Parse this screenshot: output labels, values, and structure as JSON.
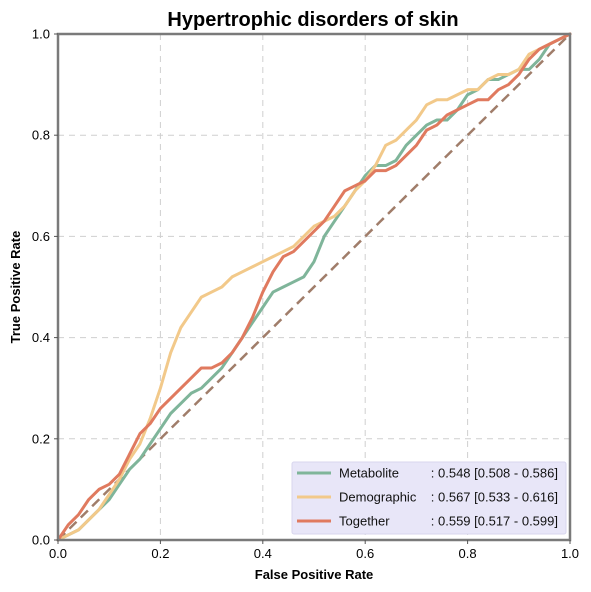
{
  "chart_data": {
    "type": "line",
    "title": "Hypertrophic disorders of skin",
    "xlabel": "False Positive Rate",
    "ylabel": "True Positive Rate",
    "xlim": [
      0,
      1
    ],
    "ylim": [
      0,
      1
    ],
    "xticks": [
      "0.0",
      "0.2",
      "0.4",
      "0.6",
      "0.8",
      "1.0"
    ],
    "yticks": [
      "0.0",
      "0.2",
      "0.4",
      "0.6",
      "0.8",
      "1.0"
    ],
    "grid": true,
    "legend_position": "bottom-right",
    "diagonal": {
      "x": [
        0,
        1
      ],
      "y": [
        0,
        1
      ],
      "color": "#a07d6a",
      "style": "dashed"
    },
    "series": [
      {
        "name": "Metabolite",
        "label_name": "Metabolite",
        "label_value": ": 0.548 [0.508 - 0.586]",
        "color": "#7fb59a",
        "x": [
          0,
          0.02,
          0.04,
          0.06,
          0.08,
          0.1,
          0.12,
          0.14,
          0.16,
          0.18,
          0.2,
          0.22,
          0.24,
          0.26,
          0.28,
          0.3,
          0.32,
          0.34,
          0.36,
          0.38,
          0.4,
          0.42,
          0.44,
          0.46,
          0.48,
          0.5,
          0.52,
          0.54,
          0.56,
          0.58,
          0.6,
          0.62,
          0.64,
          0.66,
          0.68,
          0.7,
          0.72,
          0.74,
          0.76,
          0.78,
          0.8,
          0.82,
          0.84,
          0.86,
          0.88,
          0.9,
          0.92,
          0.94,
          0.96,
          0.98,
          1.0
        ],
        "y": [
          0,
          0.01,
          0.02,
          0.04,
          0.06,
          0.08,
          0.11,
          0.14,
          0.16,
          0.19,
          0.22,
          0.25,
          0.27,
          0.29,
          0.3,
          0.32,
          0.34,
          0.37,
          0.4,
          0.43,
          0.46,
          0.49,
          0.5,
          0.51,
          0.52,
          0.55,
          0.6,
          0.63,
          0.66,
          0.69,
          0.72,
          0.74,
          0.74,
          0.75,
          0.78,
          0.8,
          0.82,
          0.83,
          0.83,
          0.85,
          0.88,
          0.89,
          0.91,
          0.91,
          0.92,
          0.93,
          0.93,
          0.95,
          0.98,
          0.99,
          1.0
        ]
      },
      {
        "name": "Demographic",
        "label_name": "Demographic",
        "label_value": ": 0.567 [0.533 - 0.616]",
        "color": "#f2c98a",
        "x": [
          0,
          0.02,
          0.04,
          0.06,
          0.08,
          0.1,
          0.12,
          0.14,
          0.16,
          0.18,
          0.2,
          0.22,
          0.24,
          0.26,
          0.28,
          0.3,
          0.32,
          0.34,
          0.36,
          0.38,
          0.4,
          0.42,
          0.44,
          0.46,
          0.48,
          0.5,
          0.52,
          0.54,
          0.56,
          0.58,
          0.6,
          0.62,
          0.64,
          0.66,
          0.68,
          0.7,
          0.72,
          0.74,
          0.76,
          0.78,
          0.8,
          0.82,
          0.84,
          0.86,
          0.88,
          0.9,
          0.92,
          0.94,
          0.96,
          0.98,
          1.0
        ],
        "y": [
          0,
          0.01,
          0.02,
          0.04,
          0.06,
          0.09,
          0.12,
          0.16,
          0.19,
          0.24,
          0.3,
          0.37,
          0.42,
          0.45,
          0.48,
          0.49,
          0.5,
          0.52,
          0.53,
          0.54,
          0.55,
          0.56,
          0.57,
          0.58,
          0.6,
          0.62,
          0.63,
          0.64,
          0.66,
          0.69,
          0.71,
          0.74,
          0.78,
          0.79,
          0.81,
          0.83,
          0.86,
          0.87,
          0.87,
          0.88,
          0.89,
          0.89,
          0.91,
          0.92,
          0.92,
          0.93,
          0.96,
          0.97,
          0.98,
          0.99,
          1.0
        ]
      },
      {
        "name": "Together",
        "label_name": "Together",
        "label_value": ": 0.559 [0.517 - 0.599]",
        "color": "#e07a5f",
        "x": [
          0,
          0.02,
          0.04,
          0.06,
          0.08,
          0.1,
          0.12,
          0.14,
          0.16,
          0.18,
          0.2,
          0.22,
          0.24,
          0.26,
          0.28,
          0.3,
          0.32,
          0.34,
          0.36,
          0.38,
          0.4,
          0.42,
          0.44,
          0.46,
          0.48,
          0.5,
          0.52,
          0.54,
          0.56,
          0.58,
          0.6,
          0.62,
          0.64,
          0.66,
          0.68,
          0.7,
          0.72,
          0.74,
          0.76,
          0.78,
          0.8,
          0.82,
          0.84,
          0.86,
          0.88,
          0.9,
          0.92,
          0.94,
          0.96,
          0.98,
          1.0
        ],
        "y": [
          0,
          0.03,
          0.05,
          0.08,
          0.1,
          0.11,
          0.13,
          0.17,
          0.21,
          0.23,
          0.26,
          0.28,
          0.3,
          0.32,
          0.34,
          0.34,
          0.35,
          0.37,
          0.4,
          0.44,
          0.49,
          0.53,
          0.56,
          0.57,
          0.59,
          0.61,
          0.63,
          0.66,
          0.69,
          0.7,
          0.71,
          0.73,
          0.73,
          0.74,
          0.76,
          0.78,
          0.81,
          0.82,
          0.84,
          0.85,
          0.86,
          0.87,
          0.87,
          0.89,
          0.9,
          0.92,
          0.95,
          0.97,
          0.98,
          0.99,
          1.0
        ]
      }
    ]
  }
}
